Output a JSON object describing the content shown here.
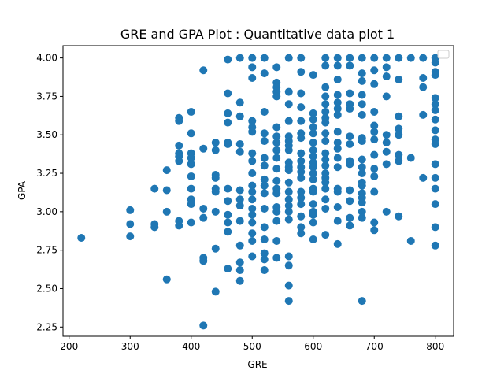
{
  "chart_data": {
    "type": "scatter",
    "title": "GRE and GPA Plot : Quantitative data plot 1",
    "xlabel": "GRE",
    "ylabel": "GPA",
    "xlim": [
      190,
      830
    ],
    "ylim": [
      2.19,
      4.08
    ],
    "xticks": [
      200,
      300,
      400,
      500,
      600,
      700,
      800
    ],
    "yticks": [
      2.25,
      2.5,
      2.75,
      3.0,
      3.25,
      3.5,
      3.75,
      4.0
    ],
    "grid": false,
    "legend": "upper right (empty)",
    "marker_color": "#1f77b4",
    "series": [
      {
        "points": [
          [
            220,
            2.83
          ],
          [
            300,
            3.01
          ],
          [
            300,
            2.92
          ],
          [
            300,
            2.84
          ],
          [
            340,
            3.15
          ],
          [
            340,
            2.92
          ],
          [
            340,
            2.9
          ],
          [
            360,
            3.27
          ],
          [
            360,
            3.14
          ],
          [
            360,
            3.0
          ],
          [
            360,
            2.56
          ],
          [
            380,
            3.61
          ],
          [
            380,
            3.59
          ],
          [
            380,
            3.43
          ],
          [
            380,
            3.38
          ],
          [
            380,
            3.36
          ],
          [
            380,
            3.33
          ],
          [
            380,
            2.94
          ],
          [
            380,
            2.91
          ],
          [
            400,
            3.65
          ],
          [
            400,
            3.51
          ],
          [
            400,
            3.38
          ],
          [
            400,
            3.35
          ],
          [
            400,
            3.31
          ],
          [
            400,
            3.23
          ],
          [
            400,
            3.15
          ],
          [
            400,
            3.08
          ],
          [
            400,
            3.05
          ],
          [
            400,
            2.93
          ],
          [
            420,
            3.92
          ],
          [
            420,
            3.41
          ],
          [
            420,
            3.02
          ],
          [
            420,
            2.96
          ],
          [
            420,
            2.7
          ],
          [
            420,
            2.68
          ],
          [
            420,
            2.26
          ],
          [
            440,
            3.45
          ],
          [
            440,
            3.4
          ],
          [
            440,
            3.24
          ],
          [
            440,
            3.22
          ],
          [
            440,
            3.15
          ],
          [
            440,
            3.13
          ],
          [
            440,
            3.0
          ],
          [
            440,
            2.76
          ],
          [
            440,
            2.48
          ],
          [
            460,
            3.99
          ],
          [
            460,
            3.77
          ],
          [
            460,
            3.64
          ],
          [
            460,
            3.58
          ],
          [
            460,
            3.45
          ],
          [
            460,
            3.44
          ],
          [
            460,
            3.15
          ],
          [
            460,
            3.07
          ],
          [
            460,
            2.98
          ],
          [
            460,
            2.93
          ],
          [
            460,
            2.87
          ],
          [
            460,
            2.63
          ],
          [
            480,
            4.0
          ],
          [
            480,
            3.71
          ],
          [
            480,
            3.62
          ],
          [
            480,
            3.44
          ],
          [
            480,
            3.39
          ],
          [
            480,
            3.14
          ],
          [
            480,
            3.08
          ],
          [
            480,
            3.04
          ],
          [
            480,
            2.94
          ],
          [
            480,
            2.78
          ],
          [
            480,
            2.67
          ],
          [
            480,
            2.62
          ],
          [
            480,
            2.55
          ],
          [
            500,
            4.0
          ],
          [
            500,
            3.94
          ],
          [
            500,
            3.87
          ],
          [
            500,
            3.59
          ],
          [
            500,
            3.55
          ],
          [
            500,
            3.52
          ],
          [
            500,
            3.38
          ],
          [
            500,
            3.33
          ],
          [
            500,
            3.25
          ],
          [
            500,
            3.17
          ],
          [
            500,
            3.13
          ],
          [
            500,
            3.08
          ],
          [
            500,
            3.02
          ],
          [
            500,
            2.98
          ],
          [
            500,
            2.93
          ],
          [
            500,
            2.86
          ],
          [
            500,
            2.81
          ],
          [
            500,
            2.71
          ],
          [
            520,
            4.0
          ],
          [
            520,
            3.9
          ],
          [
            520,
            3.65
          ],
          [
            520,
            3.51
          ],
          [
            520,
            3.46
          ],
          [
            520,
            3.35
          ],
          [
            520,
            3.3
          ],
          [
            520,
            3.21
          ],
          [
            520,
            3.17
          ],
          [
            520,
            3.12
          ],
          [
            520,
            3.02
          ],
          [
            520,
            2.9
          ],
          [
            520,
            2.82
          ],
          [
            520,
            2.73
          ],
          [
            520,
            2.69
          ],
          [
            520,
            2.62
          ],
          [
            540,
            3.94
          ],
          [
            540,
            3.84
          ],
          [
            540,
            3.81
          ],
          [
            540,
            3.78
          ],
          [
            540,
            3.75
          ],
          [
            540,
            3.55
          ],
          [
            540,
            3.49
          ],
          [
            540,
            3.45
          ],
          [
            540,
            3.4
          ],
          [
            540,
            3.35
          ],
          [
            540,
            3.28
          ],
          [
            540,
            3.2
          ],
          [
            540,
            3.15
          ],
          [
            540,
            3.12
          ],
          [
            540,
            3.03
          ],
          [
            540,
            3.0
          ],
          [
            540,
            2.94
          ],
          [
            540,
            2.81
          ],
          [
            540,
            2.7
          ],
          [
            560,
            4.0
          ],
          [
            560,
            3.78
          ],
          [
            560,
            3.7
          ],
          [
            560,
            3.59
          ],
          [
            560,
            3.49
          ],
          [
            560,
            3.46
          ],
          [
            560,
            3.43
          ],
          [
            560,
            3.4
          ],
          [
            560,
            3.32
          ],
          [
            560,
            3.29
          ],
          [
            560,
            3.27
          ],
          [
            560,
            3.19
          ],
          [
            560,
            3.13
          ],
          [
            560,
            3.08
          ],
          [
            560,
            3.04
          ],
          [
            560,
            3.0
          ],
          [
            560,
            2.95
          ],
          [
            560,
            2.71
          ],
          [
            560,
            2.65
          ],
          [
            560,
            2.52
          ],
          [
            560,
            2.42
          ],
          [
            580,
            4.0
          ],
          [
            580,
            3.91
          ],
          [
            580,
            3.77
          ],
          [
            580,
            3.68
          ],
          [
            580,
            3.59
          ],
          [
            580,
            3.51
          ],
          [
            580,
            3.48
          ],
          [
            580,
            3.38
          ],
          [
            580,
            3.33
          ],
          [
            580,
            3.29
          ],
          [
            580,
            3.26
          ],
          [
            580,
            3.22
          ],
          [
            580,
            3.13
          ],
          [
            580,
            3.09
          ],
          [
            580,
            3.05
          ],
          [
            580,
            2.97
          ],
          [
            580,
            2.9
          ],
          [
            580,
            2.86
          ],
          [
            600,
            3.89
          ],
          [
            600,
            3.64
          ],
          [
            600,
            3.6
          ],
          [
            600,
            3.55
          ],
          [
            600,
            3.51
          ],
          [
            600,
            3.45
          ],
          [
            600,
            3.4
          ],
          [
            600,
            3.36
          ],
          [
            600,
            3.32
          ],
          [
            600,
            3.29
          ],
          [
            600,
            3.25
          ],
          [
            600,
            3.21
          ],
          [
            600,
            3.15
          ],
          [
            600,
            3.13
          ],
          [
            600,
            3.05
          ],
          [
            600,
            3.0
          ],
          [
            600,
            2.98
          ],
          [
            600,
            2.93
          ],
          [
            600,
            2.82
          ],
          [
            620,
            4.0
          ],
          [
            620,
            3.95
          ],
          [
            620,
            3.81
          ],
          [
            620,
            3.75
          ],
          [
            620,
            3.7
          ],
          [
            620,
            3.65
          ],
          [
            620,
            3.61
          ],
          [
            620,
            3.58
          ],
          [
            620,
            3.51
          ],
          [
            620,
            3.46
          ],
          [
            620,
            3.38
          ],
          [
            620,
            3.34
          ],
          [
            620,
            3.3
          ],
          [
            620,
            3.25
          ],
          [
            620,
            3.22
          ],
          [
            620,
            3.19
          ],
          [
            620,
            3.15
          ],
          [
            620,
            3.08
          ],
          [
            620,
            3.02
          ],
          [
            620,
            2.85
          ],
          [
            640,
            4.0
          ],
          [
            640,
            3.95
          ],
          [
            640,
            3.86
          ],
          [
            640,
            3.76
          ],
          [
            640,
            3.71
          ],
          [
            640,
            3.67
          ],
          [
            640,
            3.63
          ],
          [
            640,
            3.52
          ],
          [
            640,
            3.45
          ],
          [
            640,
            3.41
          ],
          [
            640,
            3.35
          ],
          [
            640,
            3.29
          ],
          [
            640,
            3.15
          ],
          [
            640,
            3.13
          ],
          [
            640,
            3.03
          ],
          [
            640,
            2.94
          ],
          [
            640,
            2.79
          ],
          [
            660,
            4.0
          ],
          [
            660,
            3.95
          ],
          [
            660,
            3.77
          ],
          [
            660,
            3.7
          ],
          [
            660,
            3.67
          ],
          [
            660,
            3.49
          ],
          [
            660,
            3.44
          ],
          [
            660,
            3.33
          ],
          [
            660,
            3.31
          ],
          [
            660,
            3.14
          ],
          [
            660,
            3.07
          ],
          [
            660,
            2.96
          ],
          [
            660,
            2.91
          ],
          [
            680,
            4.0
          ],
          [
            680,
            3.9
          ],
          [
            680,
            3.85
          ],
          [
            680,
            3.76
          ],
          [
            680,
            3.7
          ],
          [
            680,
            3.63
          ],
          [
            680,
            3.48
          ],
          [
            680,
            3.46
          ],
          [
            680,
            3.34
          ],
          [
            680,
            3.29
          ],
          [
            680,
            3.25
          ],
          [
            680,
            3.19
          ],
          [
            680,
            3.17
          ],
          [
            680,
            3.12
          ],
          [
            680,
            3.09
          ],
          [
            680,
            3.06
          ],
          [
            680,
            3.0
          ],
          [
            680,
            2.96
          ],
          [
            680,
            2.42
          ],
          [
            700,
            4.0
          ],
          [
            700,
            3.92
          ],
          [
            700,
            3.83
          ],
          [
            700,
            3.65
          ],
          [
            700,
            3.56
          ],
          [
            700,
            3.52
          ],
          [
            700,
            3.47
          ],
          [
            700,
            3.37
          ],
          [
            700,
            3.28
          ],
          [
            700,
            3.23
          ],
          [
            700,
            3.13
          ],
          [
            700,
            2.93
          ],
          [
            700,
            2.88
          ],
          [
            720,
            4.0
          ],
          [
            720,
            3.94
          ],
          [
            720,
            3.88
          ],
          [
            720,
            3.75
          ],
          [
            720,
            3.5
          ],
          [
            720,
            3.45
          ],
          [
            720,
            3.39
          ],
          [
            720,
            3.31
          ],
          [
            720,
            3.0
          ],
          [
            740,
            4.0
          ],
          [
            740,
            3.86
          ],
          [
            740,
            3.62
          ],
          [
            740,
            3.54
          ],
          [
            740,
            3.5
          ],
          [
            740,
            3.37
          ],
          [
            740,
            3.33
          ],
          [
            740,
            2.97
          ],
          [
            760,
            4.0
          ],
          [
            760,
            3.35
          ],
          [
            760,
            2.81
          ],
          [
            780,
            4.0
          ],
          [
            780,
            3.87
          ],
          [
            780,
            3.81
          ],
          [
            780,
            3.63
          ],
          [
            780,
            3.22
          ],
          [
            800,
            4.0
          ],
          [
            800,
            3.97
          ],
          [
            800,
            3.91
          ],
          [
            800,
            3.89
          ],
          [
            800,
            3.74
          ],
          [
            800,
            3.7
          ],
          [
            800,
            3.66
          ],
          [
            800,
            3.6
          ],
          [
            800,
            3.53
          ],
          [
            800,
            3.47
          ],
          [
            800,
            3.44
          ],
          [
            800,
            3.31
          ],
          [
            800,
            3.22
          ],
          [
            800,
            3.15
          ],
          [
            800,
            3.05
          ],
          [
            800,
            2.9
          ],
          [
            800,
            2.78
          ]
        ]
      }
    ]
  }
}
